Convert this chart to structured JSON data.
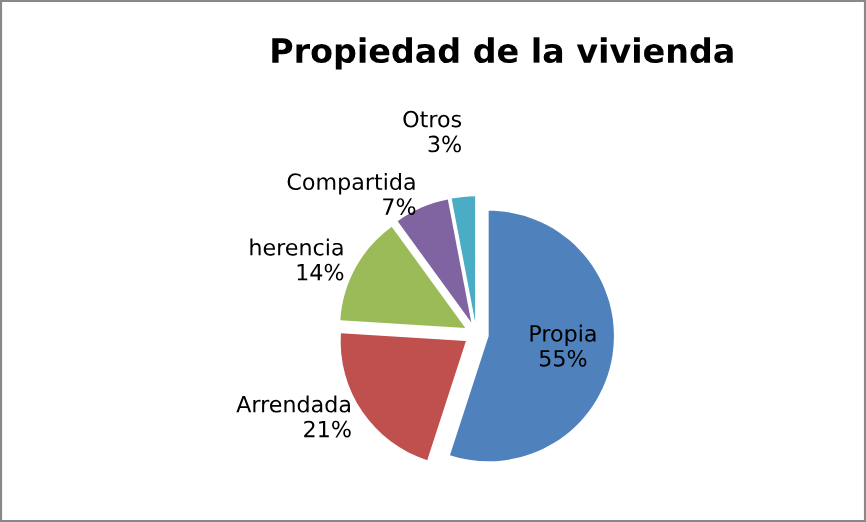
{
  "chart_data": {
    "type": "pie",
    "title": "Propiedad de la vivienda",
    "categories": [
      "Propia",
      "Arrendada",
      "herencia",
      "Compartida",
      "Otros"
    ],
    "values": [
      55,
      21,
      14,
      7,
      3
    ],
    "value_labels": [
      "55%",
      "21%",
      "14%",
      "7%",
      "3%"
    ],
    "colors": [
      "#4f81bd",
      "#c0504d",
      "#9bbb59",
      "#8064a2",
      "#4bacc6"
    ],
    "legend": false
  }
}
